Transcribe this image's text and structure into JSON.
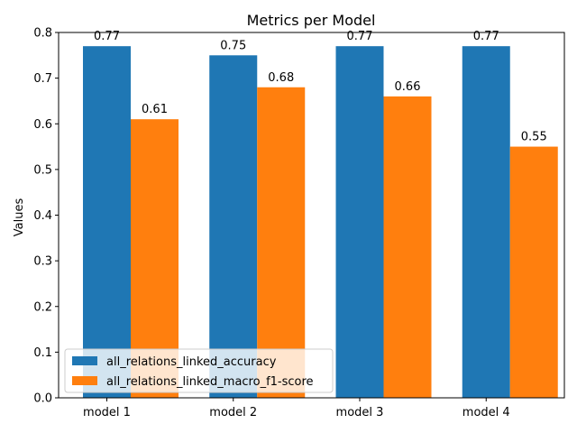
{
  "chart_data": {
    "type": "bar",
    "title": "Metrics per Model",
    "xlabel": "",
    "ylabel": "Values",
    "categories": [
      "model 1",
      "model 2",
      "model 3",
      "model 4"
    ],
    "series": [
      {
        "name": "all_relations_linked_accuracy",
        "color": "#1f77b4",
        "values": [
          0.77,
          0.75,
          0.77,
          0.77
        ]
      },
      {
        "name": "all_relations_linked_macro_f1-score",
        "color": "#ff7f0e",
        "values": [
          0.61,
          0.68,
          0.66,
          0.55
        ]
      }
    ],
    "ylim": [
      0,
      0.8
    ],
    "yticks": [
      "0.0",
      "0.1",
      "0.2",
      "0.3",
      "0.4",
      "0.5",
      "0.6",
      "0.7",
      "0.8"
    ],
    "grid": false,
    "legend_position": "lower-left",
    "data_labels": true
  }
}
